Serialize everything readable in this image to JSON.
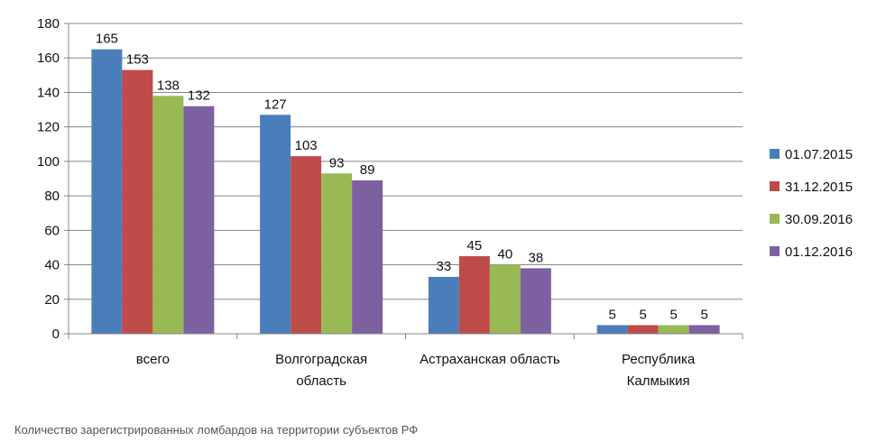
{
  "chart_data": {
    "type": "bar",
    "categories": [
      [
        "всего"
      ],
      [
        "Волгоградская",
        "область"
      ],
      [
        "Астраханская область"
      ],
      [
        "Республика",
        "Калмыкия"
      ]
    ],
    "series": [
      {
        "name": "01.07.2015",
        "color": "#4a7ebb",
        "values": [
          165,
          127,
          33,
          5
        ]
      },
      {
        "name": "31.12.2015",
        "color": "#be4b48",
        "values": [
          153,
          103,
          45,
          5
        ]
      },
      {
        "name": "30.09.2016",
        "color": "#98b954",
        "values": [
          138,
          93,
          40,
          5
        ]
      },
      {
        "name": "01.12.2016",
        "color": "#7d60a0",
        "values": [
          132,
          89,
          38,
          5
        ]
      }
    ],
    "ylim": [
      0,
      180
    ],
    "yticks": [
      0,
      20,
      40,
      60,
      80,
      100,
      120,
      140,
      160,
      180
    ],
    "grid": true,
    "legend": "right"
  },
  "caption": "Количество зарегистрированных ломбардов на территории субъектов РФ"
}
